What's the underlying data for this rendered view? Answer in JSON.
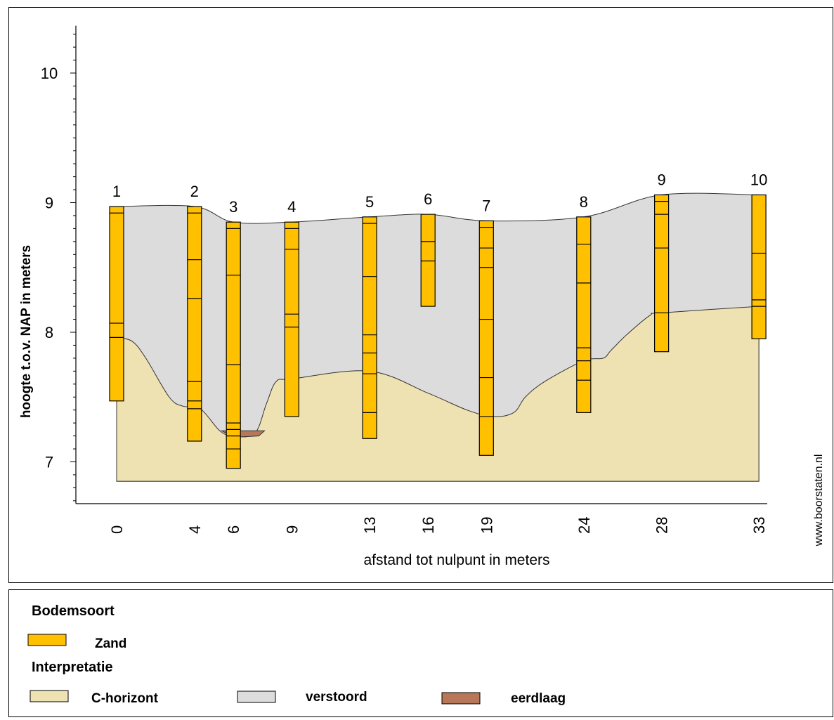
{
  "chart_data": {
    "type": "diagram",
    "ylabel": "hoogte t.o.v. NAP in meters",
    "xlabel": "afstand tot nulpunt in meters",
    "watermark": "www.boorstaten.nl",
    "y_ticks": [
      "10",
      "9",
      "8",
      "7"
    ],
    "ylim": [
      6.7,
      10.3
    ],
    "bores": [
      {
        "name": "1",
        "x": 0,
        "top": 8.97,
        "bottom": 7.47,
        "layers": [
          8.92,
          8.07,
          7.96
        ]
      },
      {
        "name": "2",
        "x": 4,
        "top": 8.97,
        "bottom": 7.16,
        "layers": [
          8.92,
          8.56,
          8.26,
          7.62,
          7.47,
          7.41
        ]
      },
      {
        "name": "3",
        "x": 6,
        "top": 8.85,
        "bottom": 6.95,
        "layers": [
          8.8,
          8.44,
          7.75,
          7.3,
          7.25,
          7.2,
          7.1
        ]
      },
      {
        "name": "4",
        "x": 9,
        "top": 8.85,
        "bottom": 7.35,
        "layers": [
          8.8,
          8.64,
          8.14,
          8.04
        ]
      },
      {
        "name": "5",
        "x": 13,
        "top": 8.89,
        "bottom": 7.18,
        "layers": [
          8.84,
          8.43,
          7.98,
          7.84,
          7.68,
          7.38
        ]
      },
      {
        "name": "6",
        "x": 16,
        "top": 8.91,
        "bottom": 8.2,
        "layers": [
          8.7,
          8.55
        ]
      },
      {
        "name": "7",
        "x": 19,
        "top": 8.86,
        "bottom": 7.05,
        "layers": [
          8.81,
          8.65,
          8.5,
          8.1,
          7.65,
          7.35
        ]
      },
      {
        "name": "8",
        "x": 24,
        "top": 8.89,
        "bottom": 7.38,
        "layers": [
          8.68,
          8.38,
          7.88,
          7.78,
          7.63
        ]
      },
      {
        "name": "9",
        "x": 28,
        "top": 9.06,
        "bottom": 7.85,
        "layers": [
          9.01,
          8.91,
          8.65,
          8.15
        ]
      },
      {
        "name": "10",
        "x": 33,
        "top": 9.06,
        "bottom": 7.95,
        "layers": [
          8.61,
          8.25,
          8.2
        ]
      }
    ],
    "verstoord_top": [
      [
        0,
        8.97
      ],
      [
        4,
        8.97
      ],
      [
        6,
        8.85
      ],
      [
        9,
        8.85
      ],
      [
        13,
        8.89
      ],
      [
        16,
        8.91
      ],
      [
        19,
        8.86
      ],
      [
        24,
        8.89
      ],
      [
        28,
        9.06
      ],
      [
        33,
        9.06
      ]
    ],
    "c_horizont_top": [
      [
        0,
        7.96
      ],
      [
        0.8,
        7.93
      ],
      [
        1.5,
        7.8
      ],
      [
        2.7,
        7.5
      ],
      [
        3.4,
        7.43
      ],
      [
        4.3,
        7.41
      ],
      [
        5.3,
        7.24
      ],
      [
        6,
        7.2
      ],
      [
        7.1,
        7.22
      ],
      [
        7.7,
        7.45
      ],
      [
        8.2,
        7.62
      ],
      [
        9,
        7.64
      ],
      [
        13,
        7.7
      ],
      [
        16,
        7.53
      ],
      [
        18,
        7.4
      ],
      [
        19.3,
        7.35
      ],
      [
        20.4,
        7.38
      ],
      [
        21,
        7.5
      ],
      [
        22,
        7.62
      ],
      [
        24,
        7.78
      ],
      [
        25,
        7.8
      ],
      [
        25.4,
        7.86
      ],
      [
        26.2,
        7.98
      ],
      [
        27.4,
        8.13
      ],
      [
        28,
        8.15
      ],
      [
        33,
        8.2
      ]
    ],
    "eerdlaag": [
      [
        5.4,
        7.24
      ],
      [
        7.6,
        7.24
      ],
      [
        7.3,
        7.2
      ],
      [
        6.0,
        7.19
      ]
    ],
    "base_depth": 6.85,
    "legend": {
      "bodemsoort_title": "Bodemsoort",
      "zand": "Zand",
      "interpretatie_title": "Interpretatie",
      "c_horizont": "C-horizont",
      "verstoord": "verstoord",
      "eerdlaag": "eerdlaag"
    },
    "colors": {
      "zand": "#FFC000",
      "c_horizont": "#EEE1B2",
      "verstoord": "#DCDCDC",
      "eerdlaag": "#B9775A"
    }
  }
}
